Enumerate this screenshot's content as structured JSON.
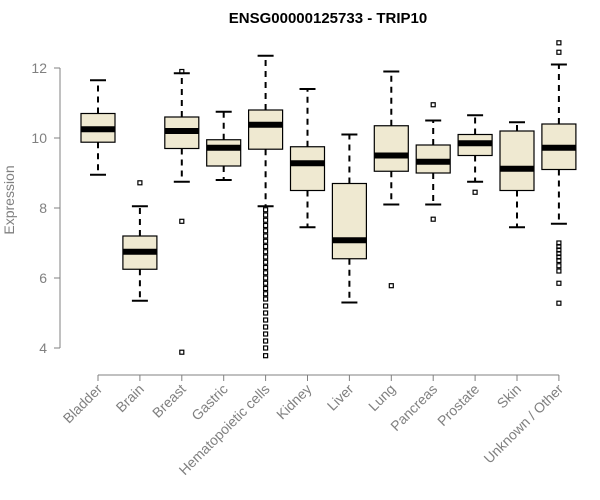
{
  "chart_data": {
    "type": "boxplot",
    "title": "ENSG00000125733 - TRIP10",
    "ylabel": "Expression",
    "xlabel": "",
    "ylim": [
      3.6,
      12.9
    ],
    "yticks": [
      4,
      6,
      8,
      10,
      12
    ],
    "box_color": "#efe9d1",
    "categories": [
      "Bladder",
      "Brain",
      "Breast",
      "Gastric",
      "Hematopoietic cells",
      "Kidney",
      "Liver",
      "Lung",
      "Pancreas",
      "Prostate",
      "Skin",
      "Unknown / Other"
    ],
    "boxes": [
      {
        "whisker_low": 8.95,
        "q1": 9.88,
        "median": 10.25,
        "q3": 10.7,
        "whisker_high": 11.65,
        "outliers": []
      },
      {
        "whisker_low": 5.35,
        "q1": 6.25,
        "median": 6.75,
        "q3": 7.2,
        "whisker_high": 8.05,
        "outliers": [
          8.72
        ]
      },
      {
        "whisker_low": 8.75,
        "q1": 9.7,
        "median": 10.2,
        "q3": 10.6,
        "whisker_high": 11.85,
        "outliers": [
          11.9,
          7.62,
          3.88
        ]
      },
      {
        "whisker_low": 8.8,
        "q1": 9.2,
        "median": 9.72,
        "q3": 9.95,
        "whisker_high": 10.75,
        "outliers": []
      },
      {
        "whisker_low": 8.05,
        "q1": 9.68,
        "median": 10.38,
        "q3": 10.8,
        "whisker_high": 12.35,
        "outliers": [
          7.95,
          7.8,
          7.65,
          7.5,
          7.35,
          7.2,
          7.05,
          6.9,
          6.75,
          6.6,
          6.45,
          6.3,
          6.15,
          6.0,
          5.85,
          5.7,
          5.55,
          5.4,
          5.2,
          5.0,
          4.8,
          4.6,
          4.4,
          4.2,
          4.0,
          3.78
        ]
      },
      {
        "whisker_low": 7.45,
        "q1": 8.5,
        "median": 9.28,
        "q3": 9.75,
        "whisker_high": 11.4,
        "outliers": []
      },
      {
        "whisker_low": 5.3,
        "q1": 6.55,
        "median": 7.08,
        "q3": 8.7,
        "whisker_high": 10.1,
        "outliers": []
      },
      {
        "whisker_low": 8.1,
        "q1": 9.05,
        "median": 9.5,
        "q3": 10.35,
        "whisker_high": 11.9,
        "outliers": [
          5.78
        ]
      },
      {
        "whisker_low": 8.1,
        "q1": 9.0,
        "median": 9.32,
        "q3": 9.8,
        "whisker_high": 10.5,
        "outliers": [
          10.95,
          7.68
        ]
      },
      {
        "whisker_low": 8.75,
        "q1": 9.5,
        "median": 9.85,
        "q3": 10.1,
        "whisker_high": 10.65,
        "outliers": [
          8.45
        ]
      },
      {
        "whisker_low": 7.45,
        "q1": 8.5,
        "median": 9.12,
        "q3": 10.2,
        "whisker_high": 10.45,
        "outliers": []
      },
      {
        "whisker_low": 7.55,
        "q1": 9.1,
        "median": 9.72,
        "q3": 10.4,
        "whisker_high": 12.1,
        "outliers": [
          12.72,
          12.45,
          7.0,
          6.9,
          6.8,
          6.7,
          6.6,
          6.5,
          6.35,
          6.2,
          5.85,
          5.28
        ]
      }
    ]
  }
}
